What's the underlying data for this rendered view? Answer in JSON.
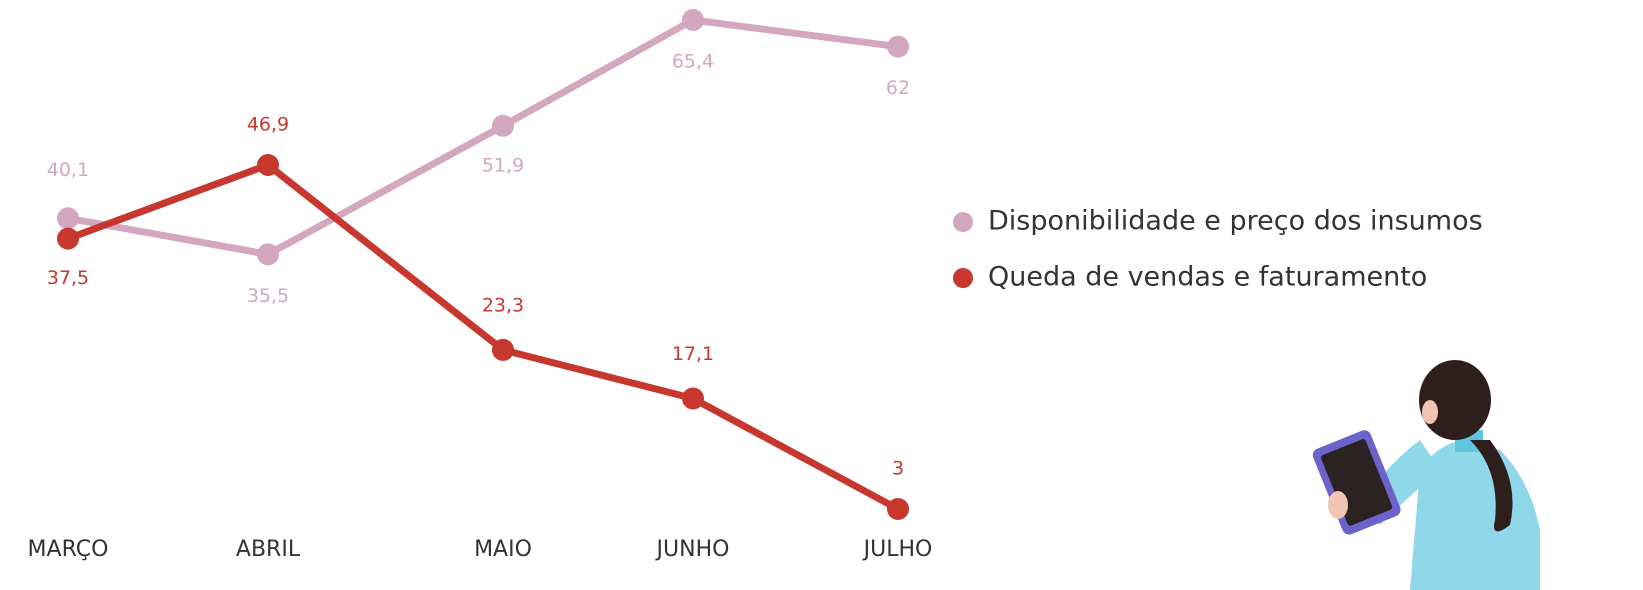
{
  "chart_data": {
    "type": "line",
    "categories": [
      "MARÇO",
      "ABRIL",
      "MAIO",
      "JUNHO",
      "JULHO"
    ],
    "series": [
      {
        "name": "Disponibilidade e preço dos insumos",
        "color": "#d4a7c1",
        "values": [
          40.1,
          35.5,
          51.9,
          65.4,
          62
        ],
        "value_labels": [
          "40,1",
          "35,5",
          "51,9",
          "65,4",
          "62"
        ]
      },
      {
        "name": "Queda de vendas e faturamento",
        "color": "#c8372d",
        "values": [
          37.5,
          46.9,
          23.3,
          17.1,
          3
        ],
        "value_labels": [
          "37,5",
          "46,9",
          "23,3",
          "17,1",
          "3"
        ]
      }
    ],
    "legend": "right"
  }
}
